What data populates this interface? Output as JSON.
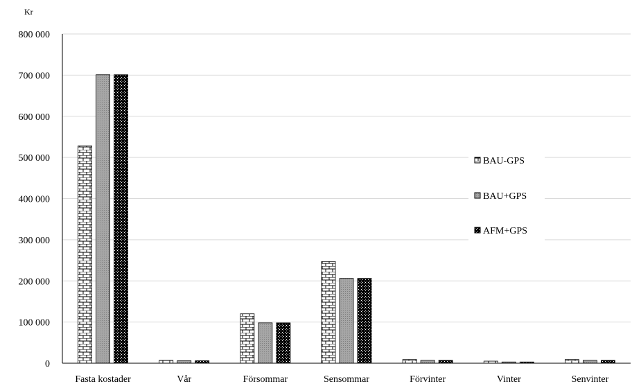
{
  "chart_data": {
    "type": "bar",
    "unit_label": "Kr",
    "categories": [
      "Fasta kostader",
      "Vår",
      "Försommar",
      "Sensommar",
      "Förvinter",
      "Vinter",
      "Senvinter"
    ],
    "series": [
      {
        "name": "BAU-GPS",
        "pattern": "brick",
        "values": [
          528000,
          7000,
          120000,
          247000,
          9000,
          5000,
          9000
        ]
      },
      {
        "name": "BAU+GPS",
        "pattern": "gray",
        "values": [
          701000,
          6000,
          98000,
          206000,
          7000,
          3000,
          7000
        ]
      },
      {
        "name": "AFM+GPS",
        "pattern": "dots",
        "values": [
          701000,
          6000,
          98000,
          206000,
          7000,
          3000,
          7000
        ]
      }
    ],
    "ylim": [
      0,
      800000
    ],
    "yticks": [
      0,
      100000,
      200000,
      300000,
      400000,
      500000,
      600000,
      700000,
      800000
    ],
    "ytick_labels": [
      "0",
      "100 000",
      "200 000",
      "300 000",
      "400 000",
      "500 000",
      "600 000",
      "700 000",
      "800 000"
    ],
    "grid": true,
    "legend_position": "right"
  },
  "colors": {
    "brick_bg": "#ffffff",
    "brick_line": "#000000",
    "gray_fill": "#a6a6a6",
    "dots_bg": "#000000",
    "dots_dot": "#ffffff",
    "grid": "#d9d9d9",
    "axis": "#000000"
  }
}
